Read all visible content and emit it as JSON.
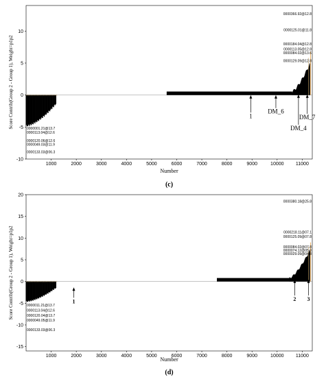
{
  "chart_data": [
    {
      "type": "bar",
      "panel": "(c)",
      "xlabel": "Number",
      "ylabel": "Score Contrib(Group 2 - Group 1), Weight=p1p2",
      "xticks": [
        1000,
        2000,
        3000,
        4000,
        5000,
        6000,
        7000,
        8000,
        9000,
        10000,
        11000
      ],
      "yticks": [
        -10,
        -5,
        0,
        5,
        10
      ],
      "xlim": [
        0,
        11400
      ],
      "ylim": [
        -10,
        14
      ],
      "profile": [
        {
          "x": 0,
          "y": -4.8
        },
        {
          "x": 200,
          "y": -4.2
        },
        {
          "x": 600,
          "y": -3.5
        },
        {
          "x": 1000,
          "y": -2.2
        },
        {
          "x": 1200,
          "y": -1.3
        },
        {
          "x": 1500,
          "y": -0.9
        },
        {
          "x": 6700,
          "y": -0.6
        },
        {
          "x": 5600,
          "y": 0.4
        },
        {
          "x": 10600,
          "y": 0.55
        },
        {
          "x": 10800,
          "y": 1.5
        },
        {
          "x": 11000,
          "y": 3.0
        },
        {
          "x": 11300,
          "y": 4.8
        }
      ],
      "point_labels_top": [
        {
          "text": "0000366.92@12.8",
          "y": 12.7
        },
        {
          "text": "0000125.01@11.8",
          "y": 10.2
        },
        {
          "text": "0000184.04@12.8",
          "y": 8.0
        },
        {
          "text": "0000113.05@12.8",
          "y": 7.2
        },
        {
          "text": "0000084.02@13.6",
          "y": 6.6
        },
        {
          "text": "0000129.09@12.8",
          "y": 5.4
        }
      ],
      "point_labels_bottom": [
        {
          "text": "0000001.21@13.7",
          "y": -5.2
        },
        {
          "text": "0000113.04@12.6",
          "y": -5.8
        },
        {
          "text": "0000120.06@12.6",
          "y": -7.1
        },
        {
          "text": "0000049.03@11.9",
          "y": -7.7
        },
        {
          "text": "0000133.03@06.3",
          "y": -8.9
        }
      ],
      "annotations": [
        {
          "text": "1",
          "x": 8950,
          "y_tip": 0.1,
          "y_text": -3.6
        },
        {
          "text": "DM_6",
          "x": 9950,
          "y_tip": 0.1,
          "y_text": -2.9
        },
        {
          "text": "DM_4",
          "x": 10850,
          "y_tip": 0.2,
          "y_text": -5.5
        },
        {
          "text": "DM_7",
          "x": 11200,
          "y_tip": 0.2,
          "y_text": -3.8
        }
      ]
    },
    {
      "type": "bar",
      "panel": "(d)",
      "xlabel": "Number",
      "ylabel": "Score Contrib(Group 2 - Group 1), Weight=p1p2",
      "xticks": [
        1000,
        2000,
        3000,
        4000,
        5000,
        6000,
        7000,
        8000,
        9000,
        10000,
        11000
      ],
      "yticks": [
        -15,
        -10,
        -5,
        0,
        5,
        10,
        15,
        20
      ],
      "xlim": [
        0,
        11400
      ],
      "ylim": [
        -16,
        20
      ],
      "profile": [
        {
          "x": 0,
          "y": -4.6
        },
        {
          "x": 200,
          "y": -4.2
        },
        {
          "x": 600,
          "y": -3.3
        },
        {
          "x": 1000,
          "y": -2.2
        },
        {
          "x": 1200,
          "y": -1.4
        },
        {
          "x": 1500,
          "y": -1.0
        },
        {
          "x": 8600,
          "y": -0.6
        },
        {
          "x": 7600,
          "y": 0.6
        },
        {
          "x": 10500,
          "y": 0.8
        },
        {
          "x": 10800,
          "y": 2.5
        },
        {
          "x": 11000,
          "y": 4.5
        },
        {
          "x": 11300,
          "y": 7.0
        }
      ],
      "point_labels_top": [
        {
          "text": "0000380.18@25.8",
          "y": 18.5
        },
        {
          "text": "0000218.11@07.1",
          "y": 11.4
        },
        {
          "text": "0000125.09@07.8",
          "y": 10.4
        },
        {
          "text": "0000084.02@07.8",
          "y": 8.0
        },
        {
          "text": "0000074.12@05.0",
          "y": 7.2
        },
        {
          "text": "0000029.09@04.8",
          "y": 6.4
        }
      ],
      "point_labels_bottom": [
        {
          "text": "0000011.21@13.7",
          "y": -5.4
        },
        {
          "text": "0000113.04@12.6",
          "y": -6.6
        },
        {
          "text": "0000120.04@13.7",
          "y": -7.8
        },
        {
          "text": "0000049.05@11.9",
          "y": -8.9
        },
        {
          "text": "0000133.03@06.3",
          "y": -11.1
        }
      ],
      "annotations": [
        {
          "text": "1",
          "x": 1900,
          "y_tip": -1.2,
          "y_text": -5.0
        },
        {
          "text": "2",
          "x": 10700,
          "y_tip": 0.6,
          "y_text": -4.5
        },
        {
          "text": "3",
          "x": 11250,
          "y_tip": 0.6,
          "y_text": -4.5
        }
      ]
    }
  ]
}
